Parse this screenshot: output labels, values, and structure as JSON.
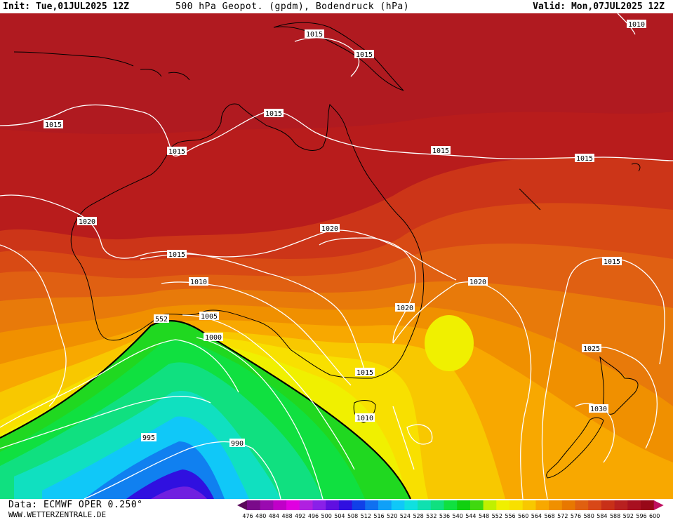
{
  "header": {
    "init": "Init: Tue,01JUL2025 12Z",
    "title": "500 hPa Geopot. (gpdm), Bodendruck (hPa)",
    "valid": "Valid: Mon,07JUL2025 12Z"
  },
  "footer": {
    "data_source": "Data: ECMWF OPER 0.250°",
    "website": "WWW.WETTERZENTRALE.DE"
  },
  "isobar_labels": [
    "1010",
    "1015",
    "1015",
    "1015",
    "1015",
    "1015",
    "1015",
    "1015",
    "1020",
    "1020",
    "1020",
    "1015",
    "1010",
    "552",
    "1005",
    "1000",
    "1015",
    "1020",
    "1015",
    "1010",
    "1025",
    "1030",
    "995",
    "990",
    "1020"
  ],
  "legend": {
    "values": [
      "476",
      "480",
      "484",
      "488",
      "492",
      "496",
      "500",
      "504",
      "508",
      "512",
      "516",
      "520",
      "524",
      "528",
      "532",
      "536",
      "540",
      "544",
      "548",
      "552",
      "556",
      "560",
      "564",
      "568",
      "572",
      "576",
      "580",
      "584",
      "588",
      "592",
      "596",
      "600"
    ],
    "colors": [
      "#5a0a5a",
      "#7a0a8a",
      "#9a0ab0",
      "#c000c8",
      "#e000e0",
      "#b020e0",
      "#8a20e8",
      "#6010e0",
      "#3010e0",
      "#1040e8",
      "#1070f0",
      "#10a0f8",
      "#10c8f8",
      "#10e0e0",
      "#10e0b0",
      "#10e080",
      "#10e040",
      "#10d010",
      "#40d810",
      "#c0f000",
      "#f0f000",
      "#f8e000",
      "#f8c800",
      "#f8a800",
      "#f09000",
      "#e87800",
      "#e06010",
      "#d84818",
      "#c83018",
      "#b82020",
      "#a81020",
      "#980818",
      "#c01060"
    ]
  }
}
